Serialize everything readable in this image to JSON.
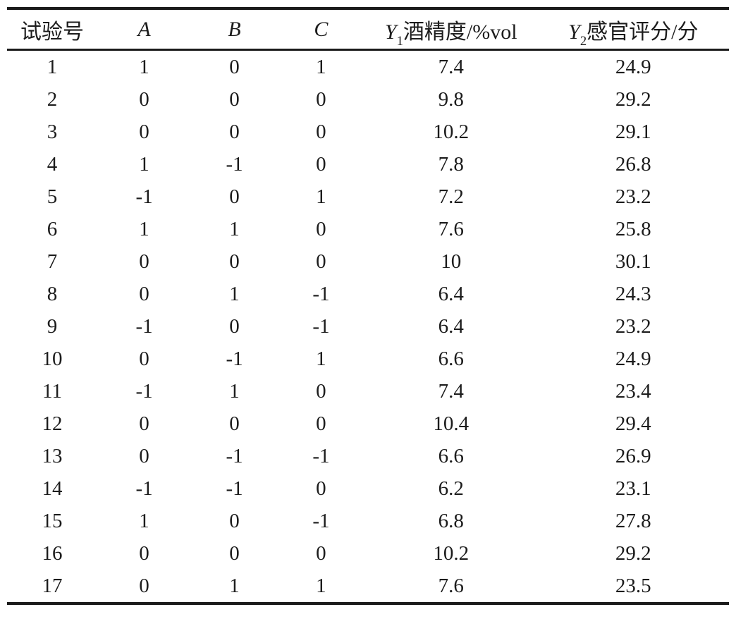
{
  "page": {
    "background": "#ffffff",
    "text_color": "#1c1c1c",
    "rule_color": "#1a1a1a"
  },
  "table": {
    "column_ids": [
      "run",
      "a",
      "b",
      "c",
      "y1",
      "y2"
    ],
    "headers": {
      "run": "试验号",
      "a": "A",
      "b": "B",
      "c": "C",
      "y1": {
        "var": "Y",
        "sub": "1",
        "rest": "酒精度/%vol"
      },
      "y2": {
        "var": "Y",
        "sub": "2",
        "rest": "感官评分/分"
      }
    },
    "rows": [
      [
        "1",
        "1",
        "0",
        "1",
        "7.4",
        "24.9"
      ],
      [
        "2",
        "0",
        "0",
        "0",
        "9.8",
        "29.2"
      ],
      [
        "3",
        "0",
        "0",
        "0",
        "10.2",
        "29.1"
      ],
      [
        "4",
        "1",
        "-1",
        "0",
        "7.8",
        "26.8"
      ],
      [
        "5",
        "-1",
        "0",
        "1",
        "7.2",
        "23.2"
      ],
      [
        "6",
        "1",
        "1",
        "0",
        "7.6",
        "25.8"
      ],
      [
        "7",
        "0",
        "0",
        "0",
        "10",
        "30.1"
      ],
      [
        "8",
        "0",
        "1",
        "-1",
        "6.4",
        "24.3"
      ],
      [
        "9",
        "-1",
        "0",
        "-1",
        "6.4",
        "23.2"
      ],
      [
        "10",
        "0",
        "-1",
        "1",
        "6.6",
        "24.9"
      ],
      [
        "11",
        "-1",
        "1",
        "0",
        "7.4",
        "23.4"
      ],
      [
        "12",
        "0",
        "0",
        "0",
        "10.4",
        "29.4"
      ],
      [
        "13",
        "0",
        "-1",
        "-1",
        "6.6",
        "26.9"
      ],
      [
        "14",
        "-1",
        "-1",
        "0",
        "6.2",
        "23.1"
      ],
      [
        "15",
        "1",
        "0",
        "-1",
        "6.8",
        "27.8"
      ],
      [
        "16",
        "0",
        "0",
        "0",
        "10.2",
        "29.2"
      ],
      [
        "17",
        "0",
        "1",
        "1",
        "7.6",
        "23.5"
      ]
    ]
  }
}
